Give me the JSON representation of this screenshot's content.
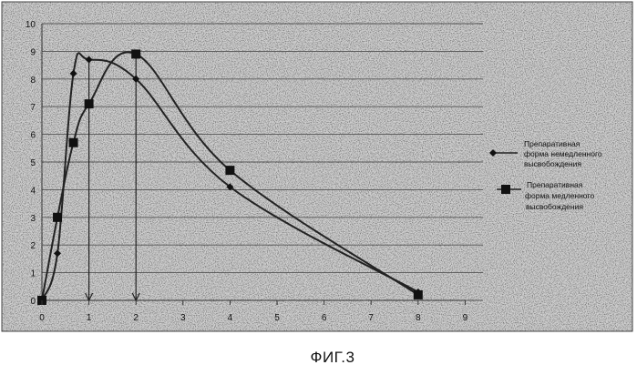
{
  "chart_data": {
    "type": "line",
    "title": "",
    "xlabel": "",
    "ylabel": "",
    "xlim": [
      0,
      9
    ],
    "ylim": [
      0,
      10
    ],
    "xticks": [
      "0",
      "1",
      "2",
      "3",
      "4",
      "5",
      "6",
      "7",
      "8",
      "9"
    ],
    "yticks": [
      "0",
      "1",
      "2",
      "3",
      "4",
      "5",
      "6",
      "7",
      "8",
      "9",
      "10"
    ],
    "grid": "horizontal",
    "legend_position": "right",
    "series": [
      {
        "name": "Препаративная форма немедленного высвобождения",
        "marker": "diamond",
        "color": "#222222",
        "x": [
          0,
          0.33,
          0.67,
          1,
          2,
          4,
          8
        ],
        "y": [
          0,
          1.7,
          8.2,
          8.7,
          8.0,
          4.1,
          0.3
        ]
      },
      {
        "name": "Препаративная форма медленного высвобождения",
        "marker": "square",
        "color": "#222222",
        "x": [
          0,
          0.33,
          0.67,
          1,
          2,
          4,
          8
        ],
        "y": [
          0,
          3.0,
          5.7,
          7.1,
          8.9,
          4.7,
          0.2
        ]
      }
    ],
    "annotations": [
      {
        "type": "vertical-arrow",
        "x": 1,
        "from_y": 8.7,
        "to_y": 0
      },
      {
        "type": "vertical-arrow",
        "x": 2,
        "from_y": 8.9,
        "to_y": 0
      }
    ]
  },
  "legend": {
    "immediate_line1": "Препаративная",
    "immediate_line2": "форма немедленного",
    "immediate_line3": "высвобождения",
    "slow_line1": "Препаративная",
    "slow_line2": "форма медленного",
    "slow_line3": "высвобождения"
  },
  "caption": "ФИГ.3"
}
